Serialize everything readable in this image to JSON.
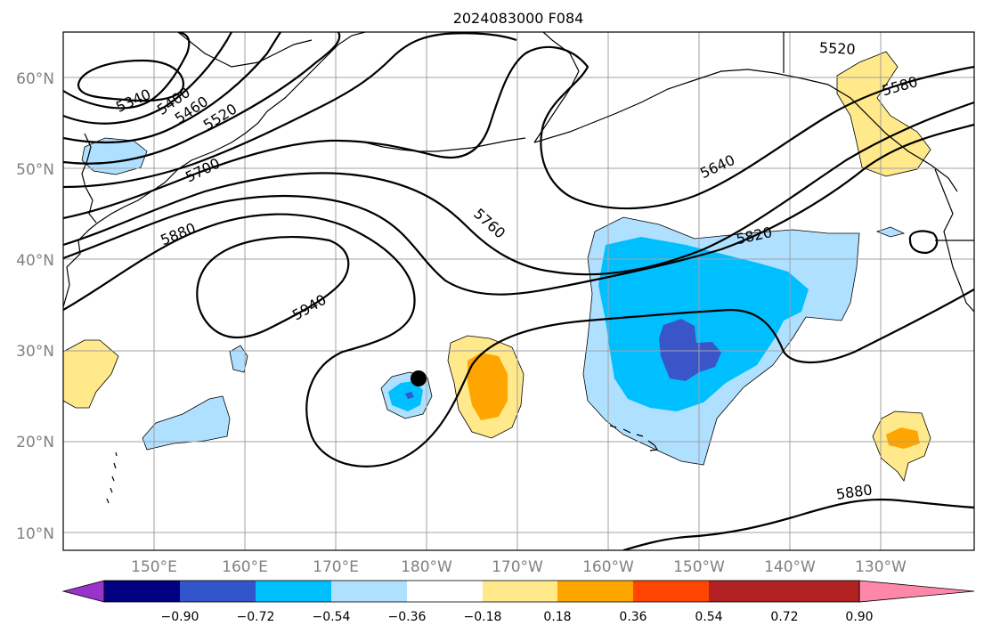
{
  "title": "2024083000 F084",
  "map": {
    "lat_labels": [
      "60°N",
      "50°N",
      "40°N",
      "30°N",
      "20°N",
      "10°N"
    ],
    "lon_labels": [
      "150°E",
      "160°E",
      "170°E",
      "180°W",
      "170°W",
      "160°W",
      "150°W",
      "140°W",
      "130°W"
    ]
  },
  "contour_labels": [
    "5340",
    "5400",
    "5460",
    "5520",
    "5700",
    "5880",
    "5940",
    "5760",
    "5640",
    "5820",
    "5520",
    "5580",
    "5880"
  ],
  "colorbar": {
    "ticks": [
      "−0.90",
      "−0.72",
      "−0.54",
      "−0.36",
      "−0.18",
      "0.18",
      "0.36",
      "0.54",
      "0.72",
      "0.90"
    ],
    "colors": [
      "#9933cc",
      "#000080",
      "#3355cc",
      "#00bfff",
      "#b0e0ff",
      "#ffffff",
      "#ffe98a",
      "#ffa500",
      "#ff4500",
      "#b22222",
      "#ff88aa"
    ]
  },
  "marker": "storm-position-dot"
}
